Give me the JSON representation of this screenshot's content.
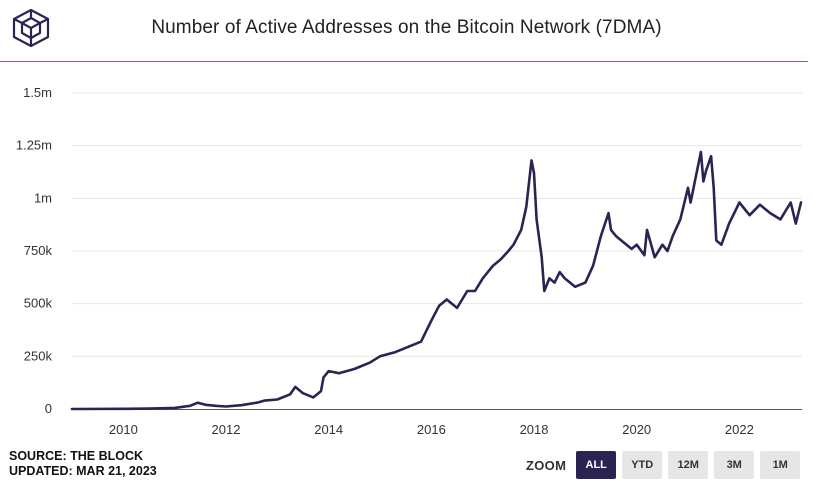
{
  "header": {
    "title": "Number of Active Addresses on the Bitcoin Network (7DMA)"
  },
  "footer": {
    "source": "SOURCE: THE BLOCK",
    "updated": "UPDATED: MAR 21, 2023"
  },
  "zoom": {
    "label": "ZOOM",
    "buttons": [
      "ALL",
      "YTD",
      "12M",
      "3M",
      "1M"
    ],
    "active": "ALL"
  },
  "colors": {
    "line": "#2d2352",
    "divider": "#8a55d6",
    "grid": "#e6e6e6",
    "button_active": "#2d2352",
    "button_inactive": "#e6e6e6"
  },
  "chart_data": {
    "type": "line",
    "title": "Number of Active Addresses on the Bitcoin Network (7DMA)",
    "xlabel": "",
    "ylabel": "",
    "xlim": [
      2009.0,
      2023.22
    ],
    "ylim": [
      0,
      1500000
    ],
    "x_ticks": [
      2010,
      2012,
      2014,
      2016,
      2018,
      2020,
      2022
    ],
    "x_tick_labels": [
      "2010",
      "2012",
      "2014",
      "2016",
      "2018",
      "2020",
      "2022"
    ],
    "y_ticks": [
      0,
      250000,
      500000,
      750000,
      1000000,
      1250000,
      1500000
    ],
    "y_tick_labels": [
      "0",
      "250k",
      "500k",
      "750k",
      "1m",
      "1.25m",
      "1.5m"
    ],
    "grid": true,
    "series": [
      {
        "x": [
          2009.0,
          2010.0,
          2010.5,
          2011.0,
          2011.3,
          2011.45,
          2011.6,
          2011.8,
          2012.0,
          2012.3,
          2012.6,
          2012.75,
          2013.0,
          2013.25,
          2013.35,
          2013.5,
          2013.7,
          2013.85,
          2013.9,
          2014.0,
          2014.2,
          2014.5,
          2014.8,
          2015.0,
          2015.3,
          2015.6,
          2015.8,
          2015.9,
          2016.0,
          2016.15,
          2016.3,
          2016.5,
          2016.7,
          2016.85,
          2017.0,
          2017.2,
          2017.35,
          2017.5,
          2017.6,
          2017.75,
          2017.85,
          2017.95,
          2018.0,
          2018.05,
          2018.15,
          2018.2,
          2018.3,
          2018.4,
          2018.5,
          2018.6,
          2018.8,
          2019.0,
          2019.15,
          2019.3,
          2019.45,
          2019.5,
          2019.6,
          2019.75,
          2019.9,
          2020.0,
          2020.15,
          2020.2,
          2020.35,
          2020.5,
          2020.6,
          2020.7,
          2020.85,
          2021.0,
          2021.05,
          2021.15,
          2021.25,
          2021.3,
          2021.35,
          2021.45,
          2021.5,
          2021.55,
          2021.65,
          2021.8,
          2022.0,
          2022.2,
          2022.4,
          2022.6,
          2022.8,
          2023.0,
          2023.1,
          2023.2
        ],
        "y": [
          0,
          1000,
          2000,
          5000,
          15000,
          30000,
          20000,
          15000,
          12000,
          18000,
          30000,
          40000,
          45000,
          70000,
          105000,
          75000,
          55000,
          85000,
          150000,
          180000,
          170000,
          190000,
          220000,
          250000,
          270000,
          300000,
          320000,
          370000,
          420000,
          490000,
          520000,
          480000,
          560000,
          560000,
          620000,
          680000,
          710000,
          750000,
          780000,
          850000,
          960000,
          1180000,
          1120000,
          900000,
          720000,
          560000,
          620000,
          600000,
          650000,
          620000,
          580000,
          600000,
          680000,
          820000,
          930000,
          850000,
          820000,
          790000,
          760000,
          780000,
          730000,
          850000,
          720000,
          780000,
          750000,
          820000,
          900000,
          1050000,
          980000,
          1100000,
          1220000,
          1080000,
          1130000,
          1200000,
          1050000,
          800000,
          780000,
          880000,
          980000,
          920000,
          970000,
          930000,
          900000,
          980000,
          880000,
          980000
        ]
      }
    ]
  }
}
